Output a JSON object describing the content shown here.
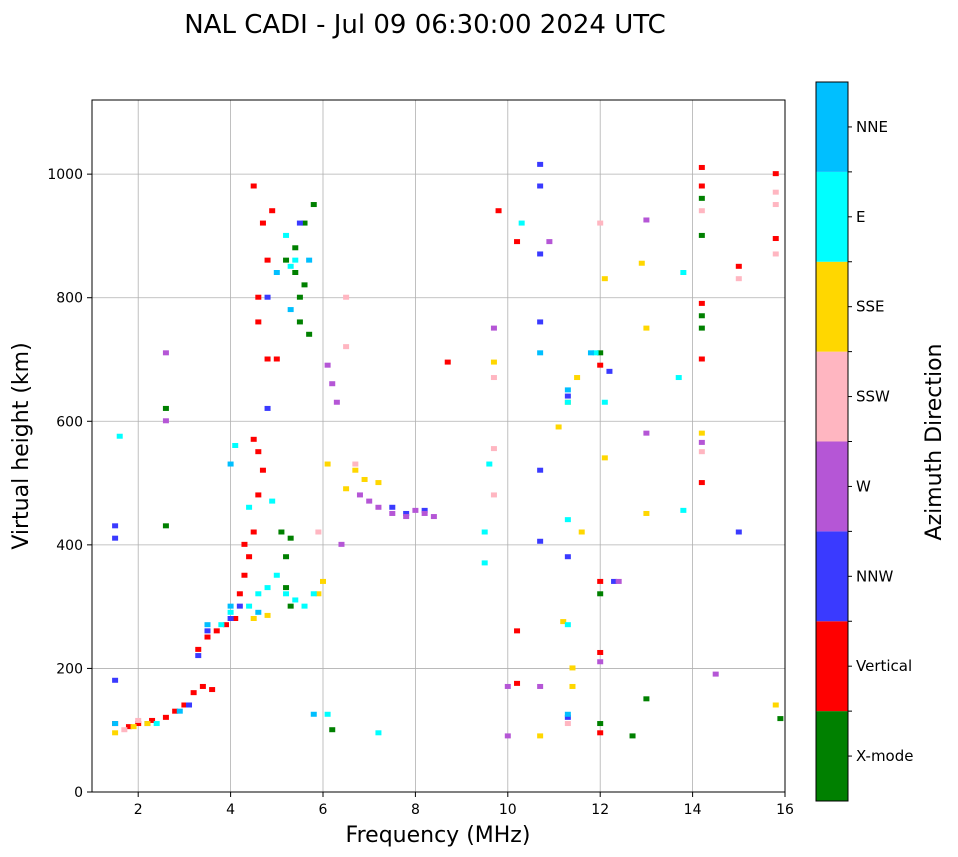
{
  "chart_data": {
    "type": "scatter",
    "title": "NAL CADI - Jul 09 06:30:00 2024 UTC",
    "xlabel": "Frequency (MHz)",
    "ylabel": "Virtual height (km)",
    "xlim": [
      1,
      16
    ],
    "ylim": [
      0,
      1120
    ],
    "xticks": [
      2,
      4,
      6,
      8,
      10,
      12,
      14,
      16
    ],
    "yticks": [
      0,
      200,
      400,
      600,
      800,
      1000
    ],
    "grid": true,
    "colorbar": {
      "label": "Azimuth Direction",
      "categories": [
        {
          "name": "X-mode",
          "color": "#008000"
        },
        {
          "name": "Vertical",
          "color": "#ff0000"
        },
        {
          "name": "NNW",
          "color": "#3a3aff"
        },
        {
          "name": "W",
          "color": "#b556d6"
        },
        {
          "name": "SSW",
          "color": "#ffb6c1"
        },
        {
          "name": "SSE",
          "color": "#ffd700"
        },
        {
          "name": "E",
          "color": "#00ffff"
        },
        {
          "name": "NNE",
          "color": "#00bfff"
        }
      ]
    },
    "series": [
      {
        "name": "X-mode",
        "points": [
          [
            5.1,
            420
          ],
          [
            5.2,
            380
          ],
          [
            5.3,
            300
          ],
          [
            5.2,
            860
          ],
          [
            5.4,
            880
          ],
          [
            5.5,
            800
          ],
          [
            5.6,
            920
          ],
          [
            5.8,
            950
          ],
          [
            5.5,
            760
          ],
          [
            5.7,
            740
          ],
          [
            5.2,
            330
          ],
          [
            5.3,
            410
          ],
          [
            14.2,
            770
          ],
          [
            14.2,
            750
          ],
          [
            14.2,
            960
          ],
          [
            14.2,
            900
          ],
          [
            12.0,
            110
          ],
          [
            12.0,
            320
          ],
          [
            12.0,
            710
          ],
          [
            12.7,
            90
          ],
          [
            13.0,
            150
          ],
          [
            15.9,
            118
          ],
          [
            2.6,
            430
          ],
          [
            2.6,
            620
          ],
          [
            6.2,
            100
          ],
          [
            5.4,
            840
          ],
          [
            5.6,
            820
          ]
        ]
      },
      {
        "name": "Vertical",
        "points": [
          [
            1.5,
            110
          ],
          [
            1.8,
            105
          ],
          [
            2.0,
            110
          ],
          [
            2.3,
            115
          ],
          [
            2.6,
            120
          ],
          [
            2.8,
            130
          ],
          [
            3.0,
            140
          ],
          [
            3.2,
            160
          ],
          [
            3.4,
            170
          ],
          [
            3.6,
            165
          ],
          [
            3.3,
            230
          ],
          [
            3.5,
            250
          ],
          [
            3.7,
            260
          ],
          [
            3.9,
            270
          ],
          [
            4.1,
            280
          ],
          [
            4.2,
            320
          ],
          [
            4.3,
            350
          ],
          [
            4.4,
            380
          ],
          [
            4.5,
            420
          ],
          [
            4.6,
            480
          ],
          [
            4.6,
            550
          ],
          [
            4.5,
            570
          ],
          [
            4.7,
            520
          ],
          [
            4.3,
            400
          ],
          [
            4.8,
            860
          ],
          [
            4.6,
            800
          ],
          [
            4.7,
            920
          ],
          [
            4.9,
            940
          ],
          [
            4.5,
            980
          ],
          [
            5.0,
            700
          ],
          [
            4.8,
            700
          ],
          [
            4.6,
            760
          ],
          [
            10.2,
            260
          ],
          [
            10.2,
            175
          ],
          [
            10.2,
            890
          ],
          [
            9.8,
            940
          ],
          [
            12.0,
            690
          ],
          [
            12.0,
            225
          ],
          [
            12.0,
            95
          ],
          [
            12.0,
            340
          ],
          [
            14.2,
            500
          ],
          [
            14.2,
            700
          ],
          [
            14.2,
            790
          ],
          [
            14.2,
            980
          ],
          [
            14.2,
            1010
          ],
          [
            15.0,
            850
          ],
          [
            15.8,
            1000
          ],
          [
            15.8,
            895
          ],
          [
            8.7,
            695
          ]
        ]
      },
      {
        "name": "NNW",
        "points": [
          [
            1.5,
            430
          ],
          [
            1.5,
            410
          ],
          [
            1.5,
            180
          ],
          [
            2.2,
            110
          ],
          [
            3.1,
            140
          ],
          [
            3.3,
            220
          ],
          [
            3.5,
            260
          ],
          [
            4.0,
            280
          ],
          [
            4.2,
            300
          ],
          [
            4.8,
            800
          ],
          [
            4.8,
            620
          ],
          [
            5.5,
            920
          ],
          [
            7.5,
            460
          ],
          [
            7.8,
            450
          ],
          [
            8.2,
            455
          ],
          [
            10.7,
            760
          ],
          [
            10.7,
            520
          ],
          [
            10.7,
            405
          ],
          [
            10.7,
            1015
          ],
          [
            10.7,
            980
          ],
          [
            10.7,
            870
          ],
          [
            11.3,
            380
          ],
          [
            11.3,
            120
          ],
          [
            11.3,
            640
          ],
          [
            12.3,
            340
          ],
          [
            12.2,
            680
          ],
          [
            15.0,
            420
          ]
        ]
      },
      {
        "name": "W",
        "points": [
          [
            6.1,
            690
          ],
          [
            6.2,
            660
          ],
          [
            6.3,
            630
          ],
          [
            6.4,
            400
          ],
          [
            6.8,
            480
          ],
          [
            7.0,
            470
          ],
          [
            7.2,
            460
          ],
          [
            7.5,
            450
          ],
          [
            7.8,
            445
          ],
          [
            8.0,
            455
          ],
          [
            8.2,
            450
          ],
          [
            8.4,
            445
          ],
          [
            10.7,
            170
          ],
          [
            10.0,
            90
          ],
          [
            10.0,
            170
          ],
          [
            10.9,
            890
          ],
          [
            12.0,
            210
          ],
          [
            12.4,
            340
          ],
          [
            13.0,
            925
          ],
          [
            13.0,
            580
          ],
          [
            14.2,
            565
          ],
          [
            14.5,
            190
          ],
          [
            9.7,
            750
          ],
          [
            2.6,
            600
          ],
          [
            2.6,
            710
          ]
        ]
      },
      {
        "name": "SSW",
        "points": [
          [
            1.7,
            100
          ],
          [
            2.0,
            115
          ],
          [
            5.9,
            420
          ],
          [
            6.5,
            800
          ],
          [
            6.5,
            720
          ],
          [
            9.7,
            480
          ],
          [
            9.7,
            555
          ],
          [
            9.7,
            670
          ],
          [
            11.3,
            110
          ],
          [
            12.0,
            920
          ],
          [
            14.2,
            940
          ],
          [
            14.2,
            550
          ],
          [
            15.0,
            830
          ],
          [
            15.8,
            970
          ],
          [
            15.8,
            950
          ],
          [
            15.8,
            870
          ],
          [
            6.7,
            530
          ]
        ]
      },
      {
        "name": "SSE",
        "points": [
          [
            1.5,
            95
          ],
          [
            1.9,
            105
          ],
          [
            2.2,
            110
          ],
          [
            4.5,
            280
          ],
          [
            4.8,
            285
          ],
          [
            5.9,
            320
          ],
          [
            6.0,
            340
          ],
          [
            6.1,
            530
          ],
          [
            6.5,
            490
          ],
          [
            6.7,
            520
          ],
          [
            6.9,
            505
          ],
          [
            7.2,
            500
          ],
          [
            9.7,
            695
          ],
          [
            10.7,
            90
          ],
          [
            11.1,
            590
          ],
          [
            11.3,
            630
          ],
          [
            11.4,
            200
          ],
          [
            11.4,
            170
          ],
          [
            11.5,
            670
          ],
          [
            11.6,
            420
          ],
          [
            12.1,
            540
          ],
          [
            12.1,
            830
          ],
          [
            12.9,
            855
          ],
          [
            13.0,
            750
          ],
          [
            13.0,
            450
          ],
          [
            14.2,
            580
          ],
          [
            15.8,
            140
          ],
          [
            11.2,
            275
          ]
        ]
      },
      {
        "name": "E",
        "points": [
          [
            1.6,
            575
          ],
          [
            2.4,
            110
          ],
          [
            3.8,
            270
          ],
          [
            4.0,
            290
          ],
          [
            4.1,
            560
          ],
          [
            4.4,
            300
          ],
          [
            4.6,
            320
          ],
          [
            4.8,
            330
          ],
          [
            5.0,
            350
          ],
          [
            5.2,
            320
          ],
          [
            5.4,
            310
          ],
          [
            5.6,
            300
          ],
          [
            5.8,
            320
          ],
          [
            5.2,
            900
          ],
          [
            5.3,
            850
          ],
          [
            5.4,
            860
          ],
          [
            4.4,
            460
          ],
          [
            4.9,
            470
          ],
          [
            9.5,
            420
          ],
          [
            9.5,
            370
          ],
          [
            9.6,
            530
          ],
          [
            10.3,
            920
          ],
          [
            11.3,
            440
          ],
          [
            11.3,
            270
          ],
          [
            11.3,
            630
          ],
          [
            11.9,
            710
          ],
          [
            12.1,
            630
          ],
          [
            13.7,
            670
          ],
          [
            13.8,
            455
          ],
          [
            13.8,
            840
          ],
          [
            6.1,
            125
          ],
          [
            7.2,
            95
          ]
        ]
      },
      {
        "name": "NNE",
        "points": [
          [
            1.5,
            110
          ],
          [
            2.9,
            130
          ],
          [
            3.5,
            270
          ],
          [
            4.0,
            300
          ],
          [
            4.6,
            290
          ],
          [
            5.0,
            840
          ],
          [
            5.3,
            780
          ],
          [
            5.7,
            860
          ],
          [
            10.7,
            710
          ],
          [
            11.3,
            125
          ],
          [
            11.3,
            650
          ],
          [
            11.8,
            710
          ],
          [
            5.8,
            125
          ],
          [
            4.0,
            530
          ]
        ]
      }
    ]
  }
}
